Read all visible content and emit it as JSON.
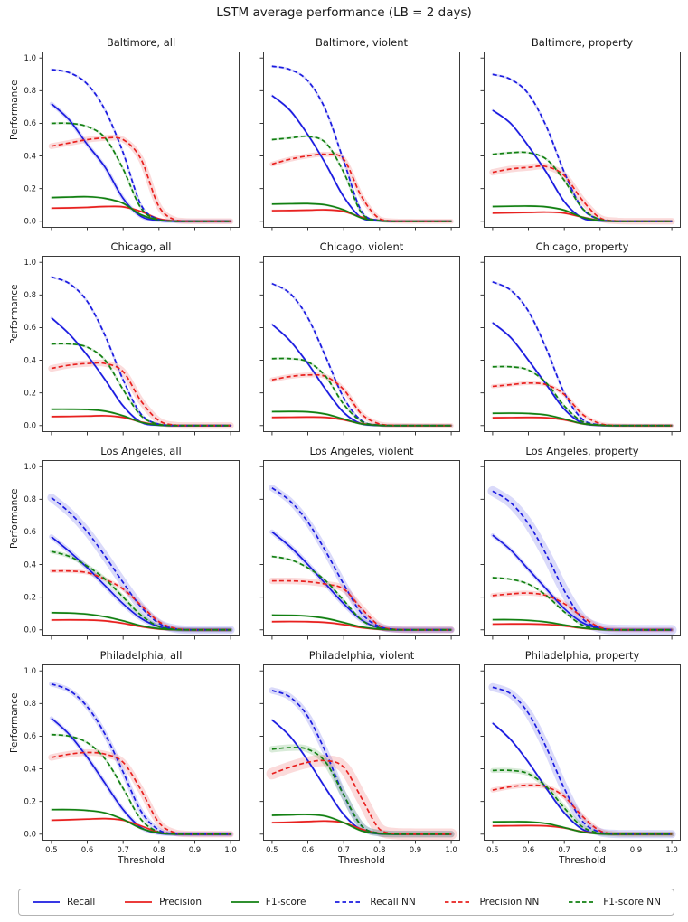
{
  "figure": {
    "suptitle": "LSTM average performance (LB = 2 days)"
  },
  "axes": {
    "xlabel": "Threshold",
    "ylabel": "Performance",
    "x_ticks": [
      0.5,
      0.6,
      0.7,
      0.8,
      0.9,
      1.0
    ],
    "y_ticks": [
      0.0,
      0.2,
      0.4,
      0.6,
      0.8,
      1.0
    ],
    "xlim": [
      0.475,
      1.025
    ],
    "ylim": [
      -0.04,
      1.04
    ],
    "grid": false
  },
  "colors": {
    "recall": "#1b1be0",
    "precision": "#e8211f",
    "f1": "#128012",
    "spine": "#3a3a3a",
    "tick": "#262626"
  },
  "legend": {
    "position": "bottom"
  },
  "chart_data": {
    "type": "line",
    "x": [
      0.5,
      0.55,
      0.6,
      0.65,
      0.7,
      0.75,
      0.8,
      0.85,
      0.9,
      0.95,
      1.0
    ],
    "series_defs": [
      {
        "key": "recall",
        "label": "Recall",
        "color_key": "recall",
        "dashed": false
      },
      {
        "key": "precision",
        "label": "Precision",
        "color_key": "precision",
        "dashed": false
      },
      {
        "key": "f1",
        "label": "F1-score",
        "color_key": "f1",
        "dashed": false
      },
      {
        "key": "recall_nn",
        "label": "Recall NN",
        "color_key": "recall",
        "dashed": true
      },
      {
        "key": "precision_nn",
        "label": "Precision NN",
        "color_key": "precision",
        "dashed": true
      },
      {
        "key": "f1_nn",
        "label": "F1-score NN",
        "color_key": "f1",
        "dashed": true
      }
    ],
    "default_band": 0.007,
    "subplots": [
      {
        "title": "Baltimore, all",
        "series": {
          "recall": [
            0.72,
            0.62,
            0.47,
            0.33,
            0.14,
            0.03,
            0.005,
            0,
            0,
            0,
            0
          ],
          "precision": [
            0.08,
            0.082,
            0.085,
            0.09,
            0.088,
            0.06,
            0.015,
            0.001,
            0,
            0,
            0
          ],
          "f1": [
            0.145,
            0.148,
            0.15,
            0.14,
            0.11,
            0.04,
            0.008,
            0,
            0,
            0,
            0
          ],
          "recall_nn": [
            0.93,
            0.91,
            0.84,
            0.68,
            0.42,
            0.1,
            0.01,
            0,
            0,
            0,
            0
          ],
          "precision_nn": [
            0.46,
            0.48,
            0.5,
            0.51,
            0.5,
            0.38,
            0.09,
            0.005,
            0,
            0,
            0
          ],
          "f1_nn": [
            0.6,
            0.6,
            0.58,
            0.51,
            0.32,
            0.08,
            0.008,
            0,
            0,
            0,
            0
          ]
        },
        "bands": {
          "precision_nn": 0.018,
          "recall": 0.012
        }
      },
      {
        "title": "Baltimore, violent",
        "series": {
          "recall": [
            0.77,
            0.68,
            0.53,
            0.35,
            0.15,
            0.02,
            0.002,
            0,
            0,
            0,
            0
          ],
          "precision": [
            0.065,
            0.066,
            0.068,
            0.07,
            0.06,
            0.025,
            0.004,
            0,
            0,
            0,
            0
          ],
          "f1": [
            0.105,
            0.107,
            0.108,
            0.1,
            0.07,
            0.02,
            0.003,
            0,
            0,
            0,
            0
          ],
          "recall_nn": [
            0.95,
            0.93,
            0.86,
            0.68,
            0.37,
            0.06,
            0.005,
            0,
            0,
            0,
            0
          ],
          "precision_nn": [
            0.35,
            0.38,
            0.4,
            0.41,
            0.38,
            0.15,
            0.015,
            0.001,
            0,
            0,
            0
          ],
          "f1_nn": [
            0.5,
            0.51,
            0.52,
            0.48,
            0.3,
            0.05,
            0.004,
            0,
            0,
            0,
            0
          ]
        },
        "bands": {
          "precision_nn": 0.015
        }
      },
      {
        "title": "Baltimore, property",
        "series": {
          "recall": [
            0.68,
            0.6,
            0.46,
            0.3,
            0.12,
            0.02,
            0.002,
            0,
            0,
            0,
            0
          ],
          "precision": [
            0.05,
            0.052,
            0.054,
            0.056,
            0.05,
            0.025,
            0.005,
            0,
            0,
            0,
            0
          ],
          "f1": [
            0.09,
            0.092,
            0.093,
            0.088,
            0.068,
            0.025,
            0.004,
            0,
            0,
            0,
            0
          ],
          "recall_nn": [
            0.9,
            0.87,
            0.78,
            0.58,
            0.3,
            0.08,
            0.01,
            0.001,
            0,
            0,
            0
          ],
          "precision_nn": [
            0.3,
            0.32,
            0.33,
            0.335,
            0.28,
            0.13,
            0.02,
            0.002,
            0,
            0,
            0
          ],
          "f1_nn": [
            0.41,
            0.42,
            0.42,
            0.38,
            0.25,
            0.08,
            0.01,
            0,
            0,
            0,
            0
          ]
        },
        "bands": {
          "precision_nn": 0.02
        }
      },
      {
        "title": "Chicago, all",
        "series": {
          "recall": [
            0.66,
            0.56,
            0.43,
            0.28,
            0.12,
            0.02,
            0.002,
            0,
            0,
            0,
            0
          ],
          "precision": [
            0.055,
            0.056,
            0.058,
            0.06,
            0.05,
            0.022,
            0.004,
            0,
            0,
            0,
            0
          ],
          "f1": [
            0.1,
            0.1,
            0.098,
            0.088,
            0.06,
            0.02,
            0.003,
            0,
            0,
            0,
            0
          ],
          "recall_nn": [
            0.91,
            0.87,
            0.76,
            0.55,
            0.28,
            0.07,
            0.008,
            0,
            0,
            0,
            0
          ],
          "precision_nn": [
            0.35,
            0.37,
            0.38,
            0.38,
            0.33,
            0.15,
            0.03,
            0.002,
            0,
            0,
            0
          ],
          "f1_nn": [
            0.5,
            0.5,
            0.48,
            0.4,
            0.22,
            0.06,
            0.007,
            0,
            0,
            0,
            0
          ]
        },
        "bands": {
          "precision_nn": 0.02
        }
      },
      {
        "title": "Chicago, violent",
        "series": {
          "recall": [
            0.62,
            0.52,
            0.38,
            0.22,
            0.08,
            0.01,
            0.001,
            0,
            0,
            0,
            0
          ],
          "precision": [
            0.05,
            0.051,
            0.052,
            0.05,
            0.035,
            0.012,
            0.002,
            0,
            0,
            0,
            0
          ],
          "f1": [
            0.085,
            0.086,
            0.084,
            0.07,
            0.04,
            0.01,
            0.001,
            0,
            0,
            0,
            0
          ],
          "recall_nn": [
            0.87,
            0.81,
            0.66,
            0.42,
            0.17,
            0.03,
            0.002,
            0,
            0,
            0,
            0
          ],
          "precision_nn": [
            0.28,
            0.3,
            0.31,
            0.3,
            0.22,
            0.07,
            0.01,
            0.001,
            0,
            0,
            0
          ],
          "f1_nn": [
            0.41,
            0.41,
            0.39,
            0.3,
            0.13,
            0.025,
            0.002,
            0,
            0,
            0,
            0
          ]
        },
        "bands": {
          "precision_nn": 0.015
        }
      },
      {
        "title": "Chicago, property",
        "series": {
          "recall": [
            0.63,
            0.54,
            0.4,
            0.25,
            0.1,
            0.015,
            0.001,
            0,
            0,
            0,
            0
          ],
          "precision": [
            0.048,
            0.049,
            0.05,
            0.048,
            0.035,
            0.012,
            0.002,
            0,
            0,
            0,
            0
          ],
          "f1": [
            0.075,
            0.076,
            0.074,
            0.065,
            0.04,
            0.012,
            0.002,
            0,
            0,
            0,
            0
          ],
          "recall_nn": [
            0.88,
            0.83,
            0.7,
            0.47,
            0.2,
            0.04,
            0.004,
            0,
            0,
            0,
            0
          ],
          "precision_nn": [
            0.24,
            0.25,
            0.26,
            0.25,
            0.19,
            0.07,
            0.012,
            0.001,
            0,
            0,
            0
          ],
          "f1_nn": [
            0.36,
            0.36,
            0.34,
            0.26,
            0.12,
            0.025,
            0.003,
            0,
            0,
            0,
            0
          ]
        },
        "bands": {
          "precision_nn": 0.012
        }
      },
      {
        "title": "Los Angeles, all",
        "series": {
          "recall": [
            0.57,
            0.48,
            0.38,
            0.27,
            0.16,
            0.07,
            0.02,
            0.003,
            0,
            0,
            0
          ],
          "precision": [
            0.06,
            0.061,
            0.06,
            0.055,
            0.04,
            0.02,
            0.005,
            0.001,
            0,
            0,
            0
          ],
          "f1": [
            0.105,
            0.103,
            0.096,
            0.08,
            0.055,
            0.025,
            0.007,
            0.001,
            0,
            0,
            0
          ],
          "recall_nn": [
            0.81,
            0.72,
            0.6,
            0.45,
            0.29,
            0.14,
            0.04,
            0.005,
            0,
            0,
            0
          ],
          "precision_nn": [
            0.36,
            0.36,
            0.35,
            0.31,
            0.25,
            0.15,
            0.05,
            0.006,
            0,
            0,
            0
          ],
          "f1_nn": [
            0.48,
            0.45,
            0.39,
            0.31,
            0.2,
            0.09,
            0.02,
            0.002,
            0,
            0,
            0
          ]
        },
        "bands": {
          "recall_nn": 0.025,
          "recall": 0.015,
          "f1_nn": 0.012,
          "precision_nn": 0.012
        }
      },
      {
        "title": "Los Angeles, violent",
        "series": {
          "recall": [
            0.6,
            0.51,
            0.4,
            0.28,
            0.16,
            0.06,
            0.012,
            0.001,
            0,
            0,
            0
          ],
          "precision": [
            0.05,
            0.051,
            0.05,
            0.045,
            0.032,
            0.013,
            0.003,
            0,
            0,
            0,
            0
          ],
          "f1": [
            0.09,
            0.089,
            0.084,
            0.07,
            0.045,
            0.018,
            0.004,
            0,
            0,
            0,
            0
          ],
          "recall_nn": [
            0.87,
            0.79,
            0.66,
            0.48,
            0.28,
            0.1,
            0.02,
            0.002,
            0,
            0,
            0
          ],
          "precision_nn": [
            0.3,
            0.3,
            0.295,
            0.28,
            0.25,
            0.13,
            0.025,
            0.002,
            0,
            0,
            0
          ],
          "f1_nn": [
            0.45,
            0.43,
            0.38,
            0.3,
            0.18,
            0.06,
            0.01,
            0.001,
            0,
            0,
            0
          ]
        },
        "bands": {
          "recall_nn": 0.02,
          "recall": 0.015,
          "precision_nn": 0.02
        }
      },
      {
        "title": "Los Angeles, property",
        "series": {
          "recall": [
            0.58,
            0.49,
            0.37,
            0.25,
            0.13,
            0.045,
            0.008,
            0.001,
            0,
            0,
            0
          ],
          "precision": [
            0.035,
            0.036,
            0.036,
            0.033,
            0.024,
            0.01,
            0.002,
            0,
            0,
            0,
            0
          ],
          "f1": [
            0.062,
            0.062,
            0.058,
            0.048,
            0.03,
            0.012,
            0.002,
            0,
            0,
            0,
            0
          ],
          "recall_nn": [
            0.85,
            0.78,
            0.65,
            0.46,
            0.24,
            0.07,
            0.012,
            0.001,
            0,
            0,
            0
          ],
          "precision_nn": [
            0.21,
            0.22,
            0.225,
            0.21,
            0.16,
            0.08,
            0.015,
            0.001,
            0,
            0,
            0
          ],
          "f1_nn": [
            0.32,
            0.31,
            0.28,
            0.21,
            0.11,
            0.03,
            0.004,
            0,
            0,
            0,
            0
          ]
        },
        "bands": {
          "recall_nn": 0.03,
          "recall": 0.012,
          "precision_nn": 0.015
        }
      },
      {
        "title": "Philadelphia, all",
        "series": {
          "recall": [
            0.71,
            0.61,
            0.47,
            0.31,
            0.15,
            0.04,
            0.005,
            0,
            0,
            0,
            0
          ],
          "precision": [
            0.085,
            0.088,
            0.092,
            0.095,
            0.085,
            0.05,
            0.012,
            0.001,
            0,
            0,
            0
          ],
          "f1": [
            0.15,
            0.15,
            0.145,
            0.13,
            0.09,
            0.035,
            0.007,
            0,
            0,
            0,
            0
          ],
          "recall_nn": [
            0.92,
            0.88,
            0.78,
            0.61,
            0.38,
            0.14,
            0.025,
            0.002,
            0,
            0,
            0
          ],
          "precision_nn": [
            0.47,
            0.49,
            0.5,
            0.49,
            0.44,
            0.27,
            0.07,
            0.006,
            0,
            0,
            0
          ],
          "f1_nn": [
            0.61,
            0.6,
            0.56,
            0.46,
            0.28,
            0.09,
            0.012,
            0.001,
            0,
            0,
            0
          ]
        },
        "bands": {
          "recall_nn": 0.015,
          "recall": 0.012,
          "precision_nn": 0.02
        }
      },
      {
        "title": "Philadelphia, violent",
        "series": {
          "recall": [
            0.7,
            0.6,
            0.45,
            0.28,
            0.12,
            0.025,
            0.002,
            0,
            0,
            0,
            0
          ],
          "precision": [
            0.07,
            0.073,
            0.077,
            0.08,
            0.07,
            0.03,
            0.005,
            0,
            0,
            0,
            0
          ],
          "f1": [
            0.115,
            0.118,
            0.12,
            0.11,
            0.07,
            0.02,
            0.003,
            0,
            0,
            0,
            0
          ],
          "recall_nn": [
            0.88,
            0.84,
            0.72,
            0.5,
            0.24,
            0.05,
            0.005,
            0,
            0,
            0,
            0
          ],
          "precision_nn": [
            0.37,
            0.41,
            0.44,
            0.45,
            0.41,
            0.22,
            0.03,
            0.002,
            0,
            0,
            0
          ],
          "f1_nn": [
            0.52,
            0.53,
            0.52,
            0.44,
            0.24,
            0.05,
            0.005,
            0,
            0,
            0,
            0
          ]
        },
        "bands": {
          "recall_nn": 0.02,
          "f1_nn": 0.02,
          "precision_nn": 0.035
        }
      },
      {
        "title": "Philadelphia, property",
        "series": {
          "recall": [
            0.68,
            0.58,
            0.44,
            0.28,
            0.13,
            0.03,
            0.003,
            0,
            0,
            0,
            0
          ],
          "precision": [
            0.05,
            0.051,
            0.052,
            0.05,
            0.038,
            0.015,
            0.003,
            0,
            0,
            0,
            0
          ],
          "f1": [
            0.075,
            0.076,
            0.075,
            0.065,
            0.04,
            0.013,
            0.002,
            0,
            0,
            0,
            0
          ],
          "recall_nn": [
            0.9,
            0.86,
            0.74,
            0.53,
            0.28,
            0.08,
            0.012,
            0.001,
            0,
            0,
            0
          ],
          "precision_nn": [
            0.27,
            0.29,
            0.3,
            0.29,
            0.23,
            0.11,
            0.02,
            0.001,
            0,
            0,
            0
          ],
          "f1_nn": [
            0.39,
            0.39,
            0.37,
            0.29,
            0.16,
            0.045,
            0.006,
            0,
            0,
            0,
            0
          ]
        },
        "bands": {
          "recall_nn": 0.025,
          "f1_nn": 0.015,
          "precision_nn": 0.015
        }
      }
    ]
  }
}
